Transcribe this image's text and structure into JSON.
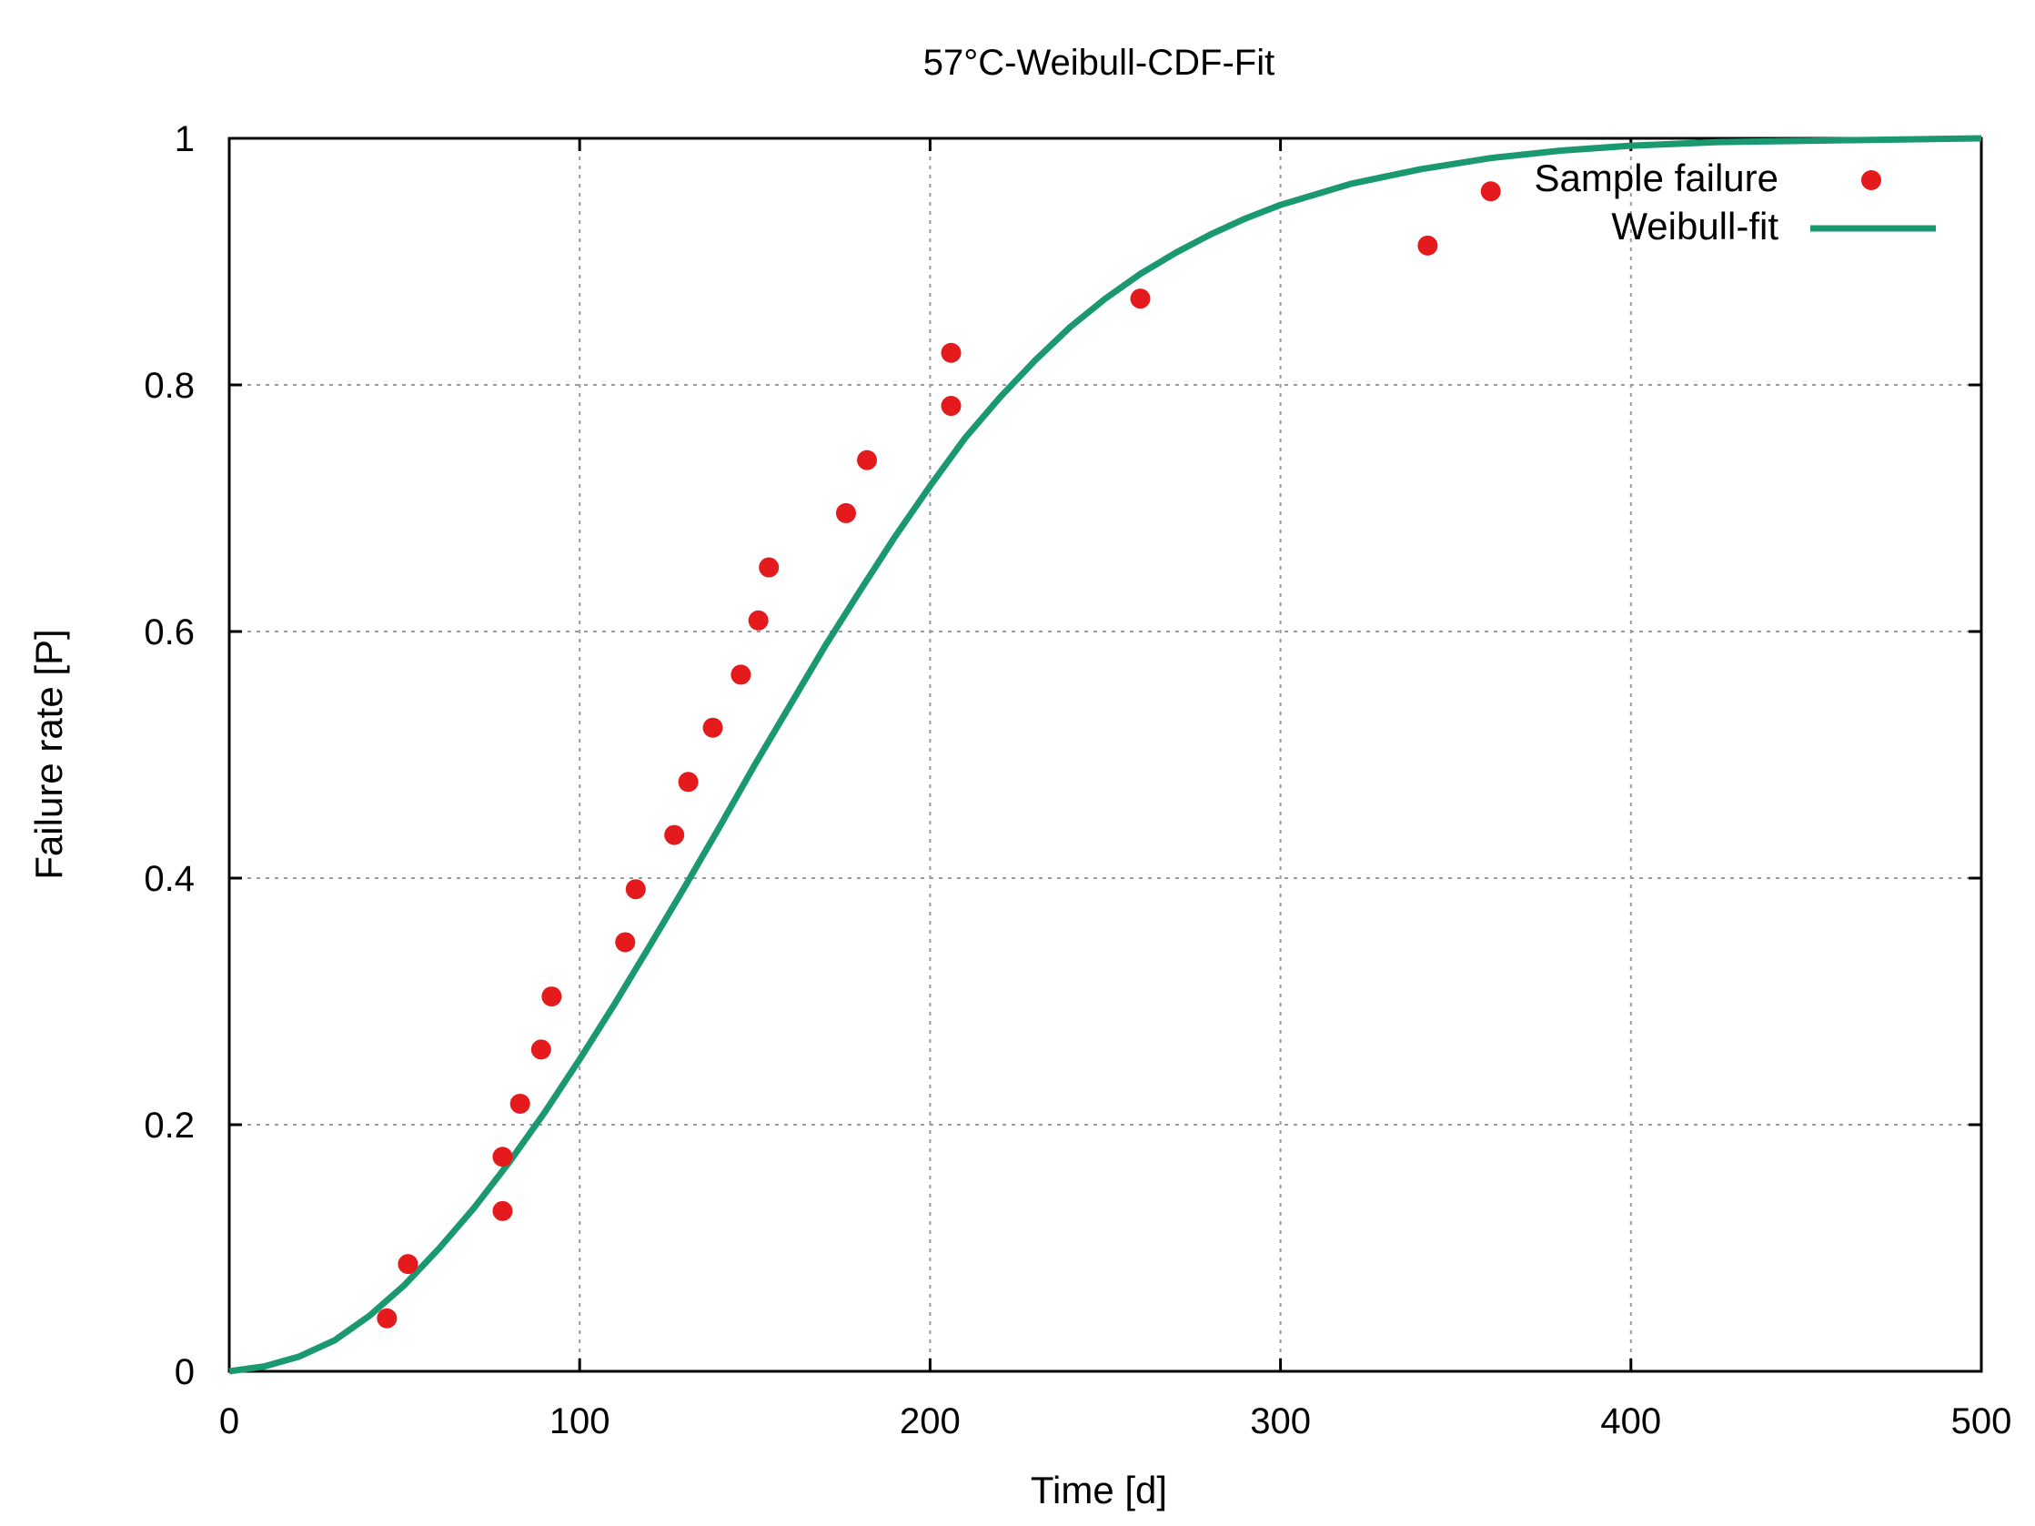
{
  "chart_data": {
    "type": "scatter",
    "title": "57°C-Weibull-CDF-Fit",
    "xlabel": "Time [d]",
    "ylabel": "Failure rate [P]",
    "xlim": [
      0,
      500
    ],
    "ylim": [
      0,
      1
    ],
    "xticks": [
      0,
      100,
      200,
      300,
      400,
      500
    ],
    "xtick_labels": [
      "0",
      "100",
      "200",
      "300",
      "400",
      "500"
    ],
    "yticks": [
      0,
      0.2,
      0.4,
      0.6,
      0.8,
      1
    ],
    "ytick_labels": [
      "0",
      "0.2",
      "0.4",
      "0.6",
      "0.8",
      "1"
    ],
    "grid": true,
    "legend_position": "top-right",
    "series": [
      {
        "name": "Sample failure",
        "kind": "points",
        "color": "#e41a1c",
        "points": [
          [
            45,
            0.043
          ],
          [
            51,
            0.087
          ],
          [
            78,
            0.174
          ],
          [
            78,
            0.13
          ],
          [
            83,
            0.217
          ],
          [
            89,
            0.261
          ],
          [
            92,
            0.304
          ],
          [
            113,
            0.348
          ],
          [
            116,
            0.391
          ],
          [
            127,
            0.435
          ],
          [
            131,
            0.478
          ],
          [
            138,
            0.522
          ],
          [
            146,
            0.565
          ],
          [
            151,
            0.609
          ],
          [
            154,
            0.652
          ],
          [
            176,
            0.696
          ],
          [
            182,
            0.739
          ],
          [
            206,
            0.783
          ],
          [
            206,
            0.826
          ],
          [
            260,
            0.87
          ],
          [
            342,
            0.913
          ],
          [
            360,
            0.957
          ]
        ]
      },
      {
        "name": "Weibull-fit",
        "kind": "line",
        "color": "#1a9870",
        "curve": [
          [
            0,
            0.0
          ],
          [
            10,
            0.004
          ],
          [
            20,
            0.012
          ],
          [
            30,
            0.025
          ],
          [
            40,
            0.045
          ],
          [
            50,
            0.07
          ],
          [
            60,
            0.1
          ],
          [
            70,
            0.133
          ],
          [
            80,
            0.17
          ],
          [
            90,
            0.21
          ],
          [
            100,
            0.253
          ],
          [
            110,
            0.298
          ],
          [
            120,
            0.345
          ],
          [
            130,
            0.393
          ],
          [
            140,
            0.442
          ],
          [
            150,
            0.492
          ],
          [
            160,
            0.54
          ],
          [
            170,
            0.588
          ],
          [
            180,
            0.633
          ],
          [
            190,
            0.677
          ],
          [
            200,
            0.718
          ],
          [
            210,
            0.757
          ],
          [
            220,
            0.79
          ],
          [
            230,
            0.82
          ],
          [
            240,
            0.847
          ],
          [
            250,
            0.87
          ],
          [
            260,
            0.89
          ],
          [
            270,
            0.907
          ],
          [
            280,
            0.922
          ],
          [
            290,
            0.935
          ],
          [
            300,
            0.946
          ],
          [
            320,
            0.963
          ],
          [
            340,
            0.975
          ],
          [
            360,
            0.984
          ],
          [
            380,
            0.99
          ],
          [
            400,
            0.994
          ],
          [
            425,
            0.997
          ],
          [
            450,
            0.998
          ],
          [
            475,
            0.999
          ],
          [
            500,
            1.0
          ]
        ]
      }
    ]
  }
}
